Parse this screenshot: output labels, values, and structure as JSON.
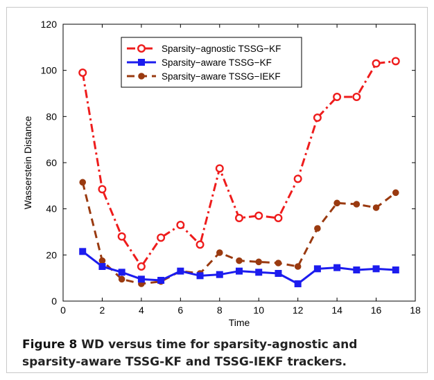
{
  "caption": {
    "label": "Figure 8",
    "text": " WD versus time for sparsity-agnostic and sparsity-aware TSSG-KF and TSSG-IEKF trackers."
  },
  "chart_data": {
    "type": "line",
    "title": "",
    "xlabel": "Time",
    "ylabel": "Wasserstein Distance",
    "xlim": [
      0,
      18
    ],
    "ylim": [
      0,
      120
    ],
    "xticks": [
      0,
      2,
      4,
      6,
      8,
      10,
      12,
      14,
      16,
      18
    ],
    "yticks": [
      0,
      20,
      40,
      60,
      80,
      100,
      120
    ],
    "grid": false,
    "legend_position": "top-center",
    "x": [
      1,
      2,
      3,
      4,
      5,
      6,
      7,
      8,
      9,
      10,
      11,
      12,
      13,
      14,
      15,
      16,
      17
    ],
    "series": [
      {
        "name": "Sparsity−agnostic TSSG−KF",
        "color": "#ee1c1c",
        "line": "dash-dot",
        "marker": "open-circle",
        "values": [
          99,
          48.5,
          28,
          15,
          27.5,
          33,
          24.5,
          57.5,
          36,
          37,
          36,
          53,
          79.5,
          88.5,
          88.5,
          103,
          104
        ]
      },
      {
        "name": "Sparsity−aware TSSG−KF",
        "color": "#1c1cee",
        "line": "solid",
        "marker": "square",
        "values": [
          21.5,
          15,
          12.5,
          9.5,
          9,
          13,
          11,
          11.5,
          13,
          12.5,
          12,
          7.5,
          14,
          14.5,
          13.5,
          14,
          13.5
        ]
      },
      {
        "name": "Sparsity−aware TSSG−IEKF",
        "color": "#9a3a10",
        "line": "dashed",
        "marker": "filled-circle",
        "values": [
          51.5,
          17.5,
          9.5,
          7.5,
          8.5,
          13,
          12,
          21,
          17.5,
          17,
          16.5,
          15,
          31.5,
          42.5,
          42,
          40.5,
          47
        ]
      }
    ]
  }
}
